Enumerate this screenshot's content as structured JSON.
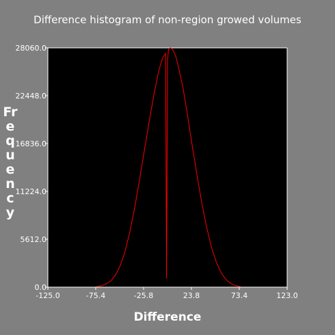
{
  "chart_data": {
    "type": "line",
    "title": "Difference histogram of non-region growed volumes",
    "xlabel": "Difference",
    "ylabel": "Frequency",
    "xlim": [
      -125.0,
      123.0
    ],
    "ylim": [
      0,
      28060
    ],
    "x_tick_labels": [
      "-125.0",
      "-75.4",
      "-25.8",
      "23.8",
      "73.4",
      "123.0"
    ],
    "y_tick_labels": [
      "0.0",
      "5612.0",
      "11224.0",
      "16836.0",
      "22448.0",
      "28060.0"
    ],
    "x_ticks": [
      -125.0,
      -75.4,
      -25.8,
      23.8,
      73.4,
      123.0
    ],
    "y_ticks": [
      0,
      5612,
      11224,
      16836,
      22448,
      28060
    ],
    "grid": false,
    "colors": {
      "background": "#808080",
      "plot_area": "#000000",
      "series": "#ff0000",
      "text": "#ffffff"
    },
    "series": [
      {
        "x": [
          -75,
          -70,
          -65,
          -60,
          -55,
          -50,
          -45,
          -40,
          -35,
          -30,
          -25,
          -20,
          -15,
          -10,
          -6,
          -3,
          -2,
          -1,
          0,
          1,
          2,
          3,
          4,
          5,
          6,
          8,
          10,
          15,
          20,
          25,
          30,
          35,
          40,
          45,
          50,
          55,
          60,
          65,
          70,
          75
        ],
        "y": [
          60,
          150,
          350,
          700,
          1400,
          2500,
          4200,
          6500,
          9300,
          12600,
          16000,
          19400,
          22600,
          25400,
          26900,
          27400,
          1000,
          26600,
          27800,
          28000,
          28060,
          28000,
          27900,
          27700,
          27500,
          26900,
          26000,
          23400,
          20000,
          16300,
          12800,
          9600,
          6800,
          4500,
          2800,
          1600,
          850,
          400,
          160,
          60
        ]
      }
    ]
  }
}
